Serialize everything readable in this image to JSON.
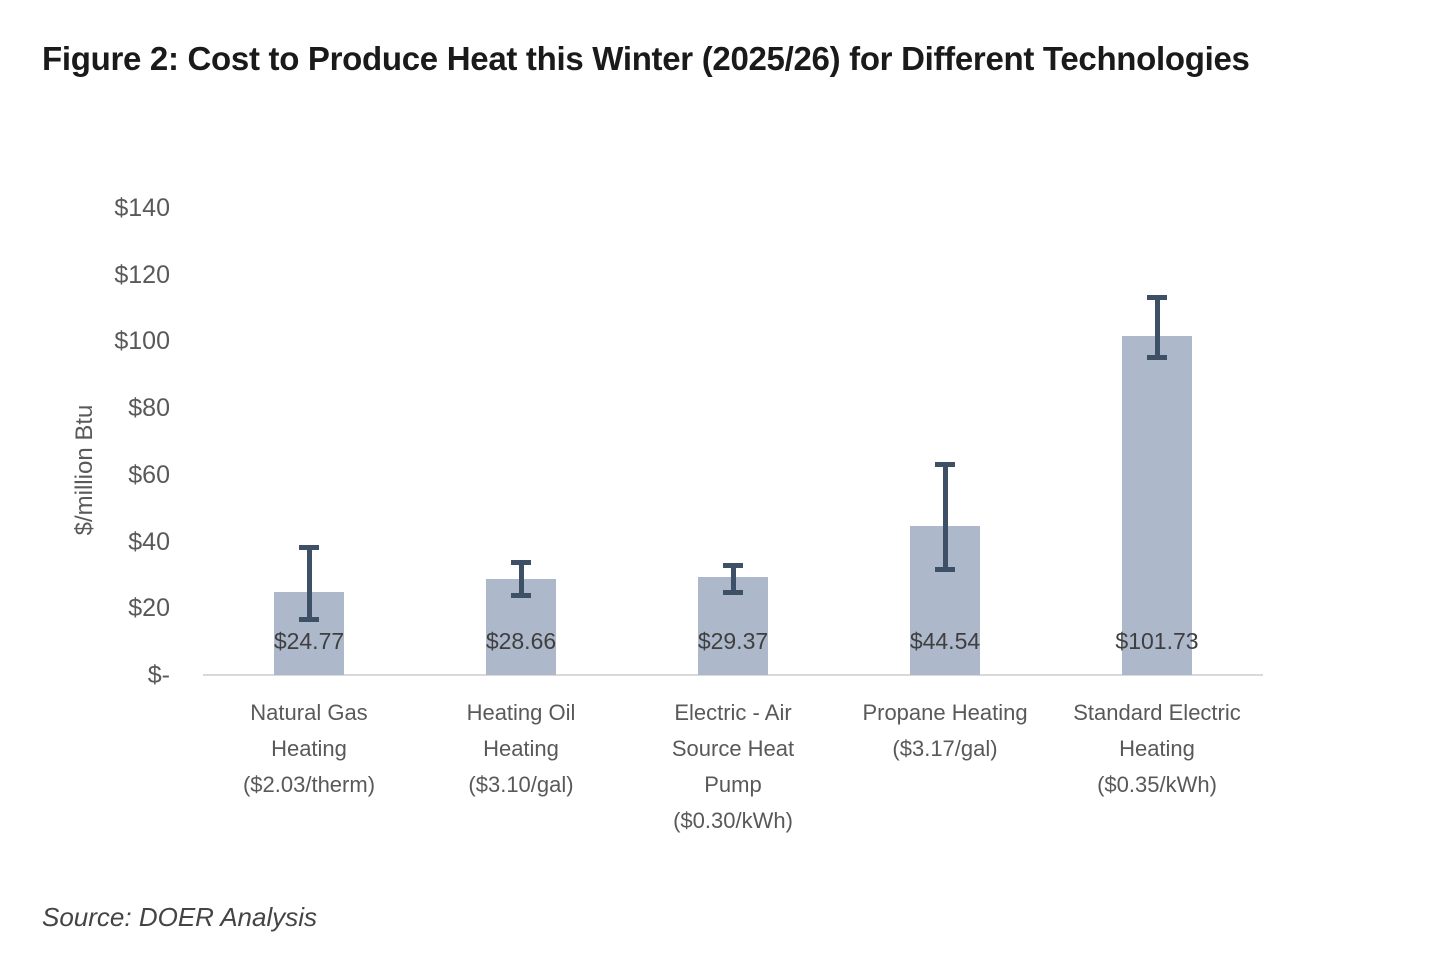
{
  "figure": {
    "title": "Figure 2: Cost to Produce Heat this Winter (2025/26) for Different Technologies",
    "source": "Source: DOER Analysis"
  },
  "chart_data": {
    "type": "bar",
    "title": "Figure 2: Cost to Produce Heat this Winter (2025/26) for Different Technologies",
    "xlabel": "",
    "ylabel": "$/million Btu",
    "ylim": [
      0,
      140
    ],
    "grid": false,
    "legend": false,
    "categories": [
      "Natural Gas Heating ($2.03/therm)",
      "Heating Oil Heating ($3.10/gal)",
      "Electric - Air Source Heat Pump ($0.30/kWh)",
      "Propane Heating ($3.17/gal)",
      "Standard Electric Heating ($0.35/kWh)"
    ],
    "category_lines": [
      [
        "Natural Gas",
        "Heating",
        "($2.03/therm)"
      ],
      [
        "Heating Oil",
        "Heating",
        "($3.10/gal)"
      ],
      [
        "Electric - Air",
        "Source Heat",
        "Pump",
        "($0.30/kWh)"
      ],
      [
        "Propane Heating",
        "($3.17/gal)"
      ],
      [
        "Standard Electric",
        "Heating",
        "($0.35/kWh)"
      ]
    ],
    "values": [
      24.77,
      28.66,
      29.37,
      44.54,
      101.73
    ],
    "data_labels": [
      "$24.77",
      "$28.66",
      "$29.37",
      "$44.54",
      "$101.73"
    ],
    "error_bars": {
      "low": [
        16,
        23,
        24,
        31,
        94.5
      ],
      "high": [
        39,
        34.5,
        33.5,
        64,
        114
      ]
    },
    "yticks": [
      {
        "value": 0,
        "label": "$-"
      },
      {
        "value": 20,
        "label": "$20"
      },
      {
        "value": 40,
        "label": "$40"
      },
      {
        "value": 60,
        "label": "$60"
      },
      {
        "value": 80,
        "label": "$80"
      },
      {
        "value": 100,
        "label": "$100"
      },
      {
        "value": 120,
        "label": "$120"
      },
      {
        "value": 140,
        "label": "$140"
      }
    ],
    "colors": {
      "bar": "#adb8ca",
      "error_bar": "#3e5066",
      "axis_line": "#d9d9d9",
      "tick_text": "#595959",
      "data_label_text": "#3f3f3f",
      "title_text": "#1a1a1a",
      "source_text": "#444444"
    }
  }
}
